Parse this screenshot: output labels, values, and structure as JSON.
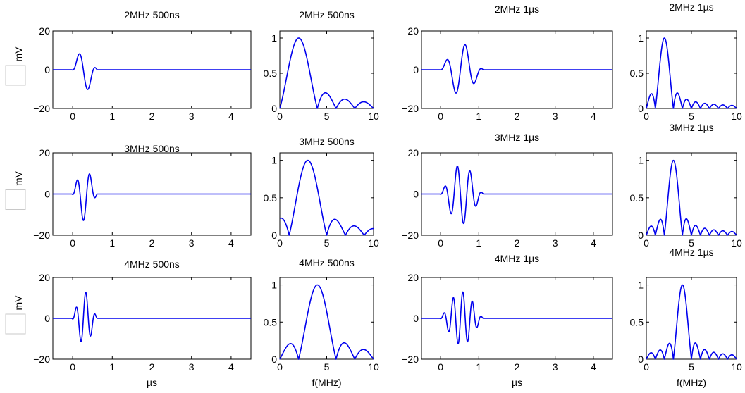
{
  "chart_data": [
    {
      "type": "line",
      "title": "2MHz  500ns",
      "ylabel": "mV",
      "xlabel": "",
      "xlim": [
        -0.5,
        4.5
      ],
      "ylim": [
        -20,
        20
      ],
      "xticks": [
        "0",
        "1",
        "2",
        "3",
        "4"
      ],
      "yticks": [
        "20",
        "0",
        "−20"
      ],
      "series": [
        {
          "signal": {
            "kind": "time",
            "fc": 2,
            "dur": 0.5,
            "amp": 11.5
          },
          "values": []
        }
      ]
    },
    {
      "type": "line",
      "title": "2MHz  500ns",
      "xlabel": "",
      "xlim": [
        0,
        10
      ],
      "ylim": [
        0,
        1.1
      ],
      "xticks": [
        "0",
        "5",
        "10"
      ],
      "yticks": [
        "1",
        "0.5",
        "0"
      ],
      "series": [
        {
          "signal": {
            "kind": "freq",
            "fc": 2,
            "dur": 0.5
          },
          "values": []
        }
      ]
    },
    {
      "type": "line",
      "title": "2MHz  1µs",
      "xlabel": "",
      "xlim": [
        -0.5,
        4.5
      ],
      "ylim": [
        -20,
        20
      ],
      "xticks": [
        "0",
        "1",
        "2",
        "3",
        "4"
      ],
      "yticks": [
        "20",
        "0",
        "−20"
      ],
      "series": [
        {
          "signal": {
            "kind": "time",
            "fc": 2,
            "dur": 1,
            "amp": 13.5
          },
          "values": []
        }
      ]
    },
    {
      "type": "line",
      "title": "2MHz  1µs",
      "xlabel": "",
      "xlim": [
        0,
        10
      ],
      "ylim": [
        0,
        1.1
      ],
      "xticks": [
        "0",
        "5",
        "10"
      ],
      "yticks": [
        "1",
        "0.5",
        "0"
      ],
      "series": [
        {
          "signal": {
            "kind": "freq",
            "fc": 2,
            "dur": 1
          },
          "values": []
        }
      ]
    },
    {
      "type": "line",
      "title": "3MHz  500ns",
      "ylabel": "mV",
      "xlabel": "",
      "xlim": [
        -0.5,
        4.5
      ],
      "ylim": [
        -20,
        20
      ],
      "xticks": [
        "0",
        "1",
        "2",
        "3",
        "4"
      ],
      "yticks": [
        "20",
        "0",
        "−20"
      ],
      "series": [
        {
          "signal": {
            "kind": "time",
            "fc": 3,
            "dur": 0.5,
            "amp": 13
          },
          "values": []
        }
      ]
    },
    {
      "type": "line",
      "title": "3MHz  500ns",
      "xlabel": "",
      "xlim": [
        0,
        10
      ],
      "ylim": [
        0,
        1.1
      ],
      "xticks": [
        "0",
        "5",
        "10"
      ],
      "yticks": [
        "1",
        "0.5",
        "0"
      ],
      "series": [
        {
          "signal": {
            "kind": "freq",
            "fc": 3,
            "dur": 0.5
          },
          "values": []
        }
      ]
    },
    {
      "type": "line",
      "title": "3MHz  1µs",
      "xlabel": "",
      "xlim": [
        -0.5,
        4.5
      ],
      "ylim": [
        -20,
        20
      ],
      "xticks": [
        "0",
        "1",
        "2",
        "3",
        "4"
      ],
      "yticks": [
        "20",
        "0",
        "−20"
      ],
      "series": [
        {
          "signal": {
            "kind": "time",
            "fc": 3,
            "dur": 1,
            "amp": 14.5
          },
          "values": []
        }
      ]
    },
    {
      "type": "line",
      "title": "3MHz  1µs",
      "xlabel": "",
      "xlim": [
        0,
        10
      ],
      "ylim": [
        0,
        1.1
      ],
      "xticks": [
        "0",
        "5",
        "10"
      ],
      "yticks": [
        "1",
        "0.5",
        "0"
      ],
      "series": [
        {
          "signal": {
            "kind": "freq",
            "fc": 3,
            "dur": 1
          },
          "values": []
        }
      ]
    },
    {
      "type": "line",
      "title": "4MHz  500ns",
      "ylabel": "mV",
      "xlabel": "µs",
      "xlim": [
        -0.5,
        4.5
      ],
      "ylim": [
        -20,
        20
      ],
      "xticks": [
        "0",
        "1",
        "2",
        "3",
        "4"
      ],
      "yticks": [
        "20",
        "0",
        "−20"
      ],
      "series": [
        {
          "signal": {
            "kind": "time",
            "fc": 4,
            "dur": 0.5,
            "amp": 13
          },
          "values": []
        }
      ]
    },
    {
      "type": "line",
      "title": "4MHz  500ns",
      "xlabel": "f(MHz)",
      "xlim": [
        0,
        10
      ],
      "ylim": [
        0,
        1.1
      ],
      "xticks": [
        "0",
        "5",
        "10"
      ],
      "yticks": [
        "1",
        "0.5",
        "0"
      ],
      "series": [
        {
          "signal": {
            "kind": "freq",
            "fc": 4,
            "dur": 0.5
          },
          "values": []
        }
      ]
    },
    {
      "type": "line",
      "title": "4MHz  1µs",
      "xlabel": "µs",
      "xlim": [
        -0.5,
        4.5
      ],
      "ylim": [
        -20,
        20
      ],
      "xticks": [
        "0",
        "1",
        "2",
        "3",
        "4"
      ],
      "yticks": [
        "20",
        "0",
        "−20"
      ],
      "series": [
        {
          "signal": {
            "kind": "time",
            "fc": 4,
            "dur": 1,
            "amp": 13
          },
          "values": []
        }
      ]
    },
    {
      "type": "line",
      "title": "4MHz  1µs",
      "xlabel": "f(MHz)",
      "xlim": [
        0,
        10
      ],
      "ylim": [
        0,
        1.1
      ],
      "xticks": [
        "0",
        "5",
        "10"
      ],
      "yticks": [
        "1",
        "0.5",
        "0"
      ],
      "series": [
        {
          "signal": {
            "kind": "freq",
            "fc": 4,
            "dur": 1
          },
          "values": []
        }
      ]
    }
  ],
  "colors": {
    "trace": "#0000ee",
    "axis": "#000000"
  }
}
